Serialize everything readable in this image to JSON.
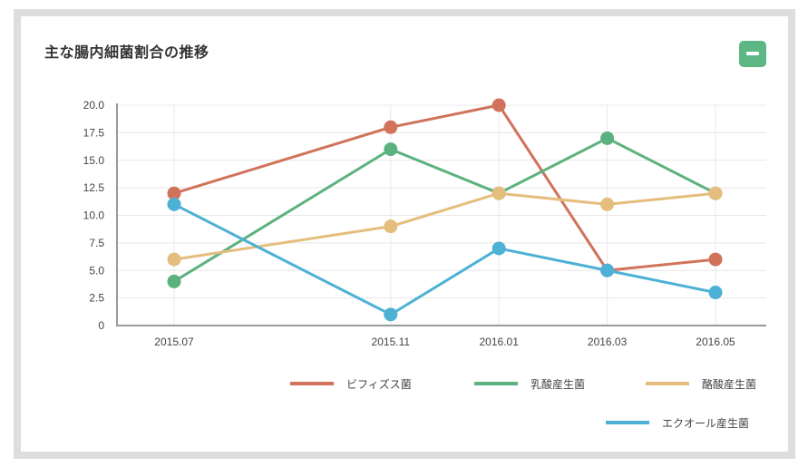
{
  "panel": {
    "title": "主な腸内細菌割合の推移",
    "collapse_button": "minus-icon",
    "accent_color": "#5cb784"
  },
  "chart_data": {
    "type": "line",
    "title": "主な腸内細菌割合の推移",
    "xlabel": "",
    "ylabel": "",
    "x_type": "time",
    "x": [
      "2015.07",
      "2015.11",
      "2016.01",
      "2016.03",
      "2016.05"
    ],
    "x_months": [
      0,
      4,
      6,
      8,
      10
    ],
    "ylim": [
      0,
      20
    ],
    "yticks": [
      "0",
      "2.5",
      "5.0",
      "7.5",
      "10.0",
      "12.5",
      "15.0",
      "17.5",
      "20.0"
    ],
    "ytick_values": [
      0,
      2.5,
      5,
      7.5,
      10,
      12.5,
      15,
      17.5,
      20
    ],
    "grid": true,
    "legend_position": "bottom-right",
    "series": [
      {
        "name": "ビフィズス菌",
        "color": "#d0735a",
        "values": [
          12,
          18,
          20,
          5,
          6
        ]
      },
      {
        "name": "乳酸産生菌",
        "color": "#5cb27f",
        "values": [
          4,
          16,
          12,
          17,
          12
        ]
      },
      {
        "name": "酪酸産生菌",
        "color": "#e5bd7c",
        "values": [
          6,
          9,
          12,
          11,
          12
        ]
      },
      {
        "name": "エクオール産生菌",
        "color": "#4db1d6",
        "values": [
          11,
          1,
          7,
          5,
          3
        ]
      }
    ]
  }
}
